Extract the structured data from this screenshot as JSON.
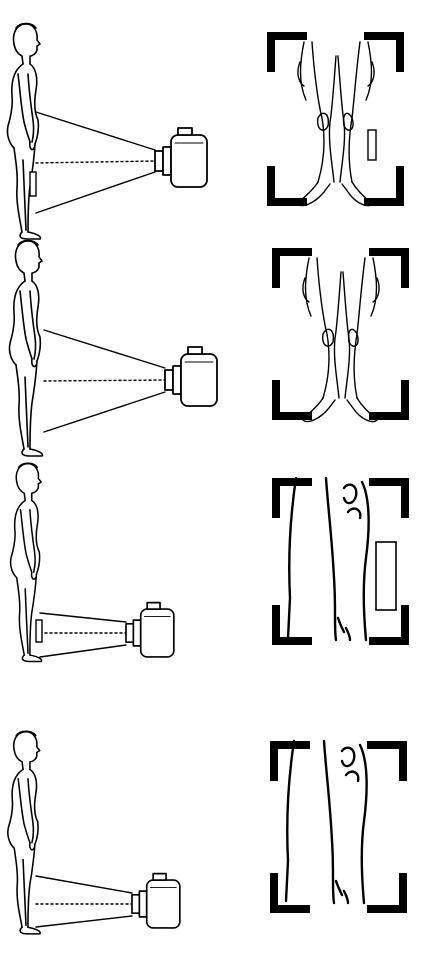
{
  "colors": {
    "ink": "#000000",
    "background": "#ffffff"
  },
  "panels": [
    {
      "id": "row-1",
      "shot": "full-body",
      "film_marker": true
    },
    {
      "id": "row-2",
      "shot": "full-body",
      "film_marker": false
    },
    {
      "id": "row-3",
      "shot": "lower-legs",
      "film_marker": true
    },
    {
      "id": "row-4",
      "shot": "lower-legs",
      "film_marker": false
    }
  ]
}
